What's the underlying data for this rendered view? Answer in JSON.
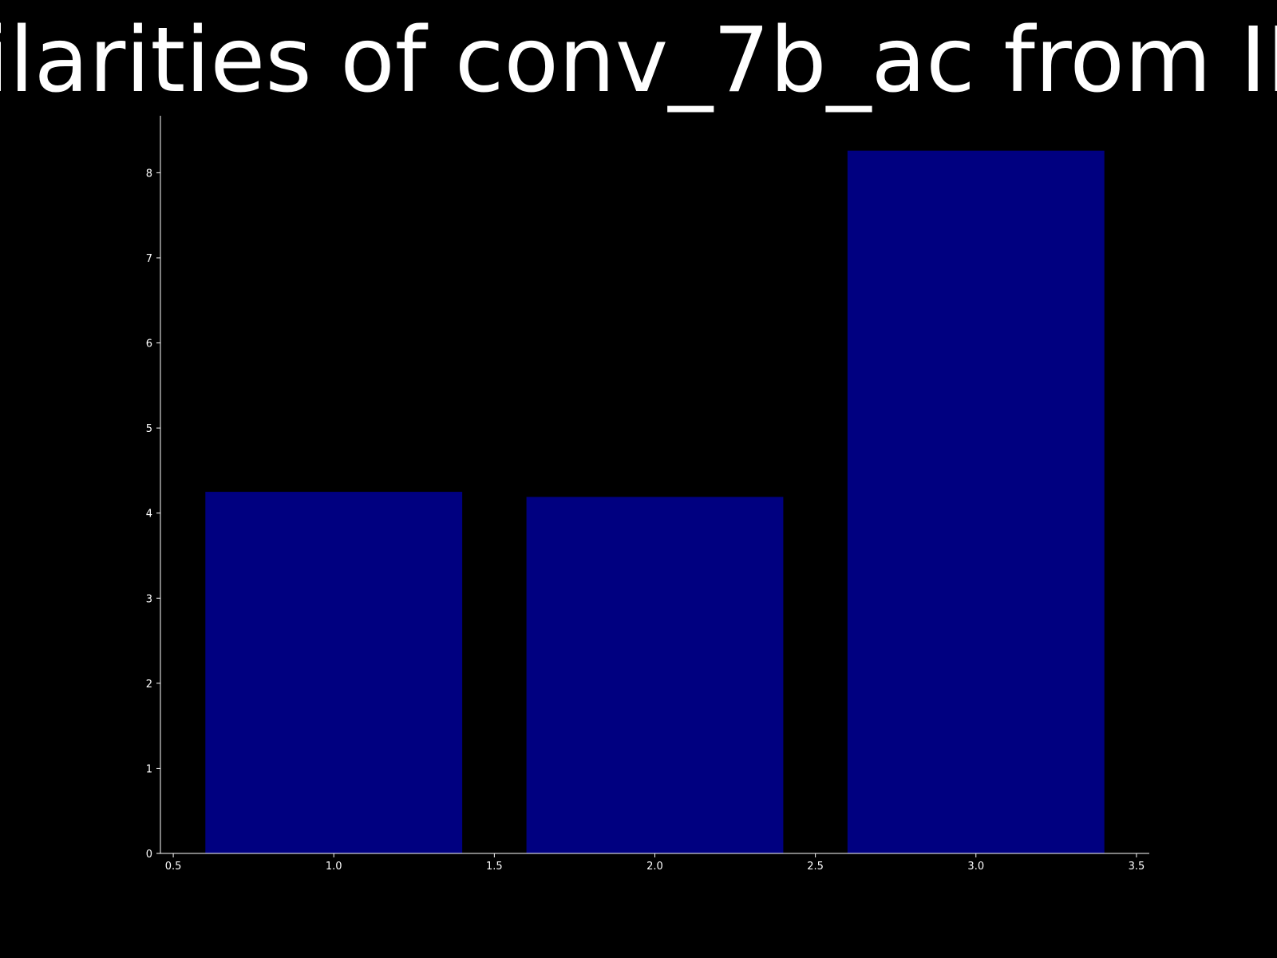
{
  "chart_data": {
    "type": "bar",
    "title": "ilarities of conv_7b_ac from II",
    "x": [
      1,
      2,
      3
    ],
    "values": [
      4.25,
      4.19,
      8.26
    ],
    "bar_width": 0.8,
    "xlim": [
      0.46,
      3.54
    ],
    "ylim": [
      0,
      8.67
    ],
    "xticks": [
      "0.5",
      "1.0",
      "1.5",
      "2.0",
      "2.5",
      "3.0",
      "3.5"
    ],
    "yticks": [
      "0",
      "1",
      "2",
      "3",
      "4",
      "5",
      "6",
      "7",
      "8"
    ],
    "xlabel": "",
    "ylabel": "",
    "grid": false,
    "bar_color": "#000080",
    "background_color": "#000000",
    "axis_color": "#ffffff"
  }
}
